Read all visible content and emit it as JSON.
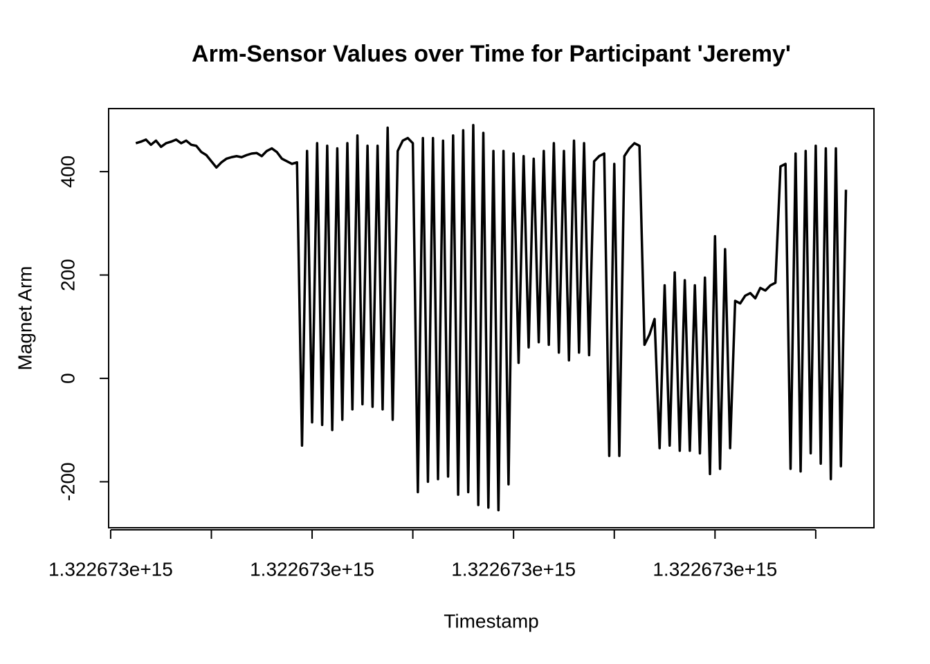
{
  "chart_data": {
    "type": "line",
    "title": "Arm-Sensor Values over Time for Participant 'Jeremy'",
    "x_label": "Timestamp",
    "y_label": "Magnet Arm",
    "color": "#000000",
    "x": [
      1322673012500000,
      1322673015000000,
      1322673017500000,
      1322673020000000,
      1322673022500000,
      1322673025000000,
      1322673027500000,
      1322673030000000,
      1322673032500000,
      1322673035000000,
      1322673037500000,
      1322673040000000,
      1322673042500000,
      1322673045000000,
      1322673047500000,
      1322673050000000,
      1322673052500000,
      1322673055000000,
      1322673057500000,
      1322673060000000,
      1322673062500000,
      1322673065000000,
      1322673067500000,
      1322673070000000,
      1322673072500000,
      1322673075000000,
      1322673077500000,
      1322673080000000,
      1322673082500000,
      1322673085000000,
      1322673087500000,
      1322673090000000,
      1322673092500000,
      1322673095000000,
      1322673097500000,
      1322673100000000,
      1322673102500000,
      1322673105000000,
      1322673107500000,
      1322673110000000,
      1322673112500000,
      1322673115000000,
      1322673117500000,
      1322673120000000,
      1322673122500000,
      1322673125000000,
      1322673127500000,
      1322673130000000,
      1322673132500000,
      1322673135000000,
      1322673137500000,
      1322673140000000,
      1322673142500000,
      1322673145000000,
      1322673147500000,
      1322673150000000,
      1322673152500000,
      1322673155000000,
      1322673157500000,
      1322673160000000,
      1322673162500000,
      1322673165000000,
      1322673167500000,
      1322673170000000,
      1322673172500000,
      1322673175000000,
      1322673177500000,
      1322673180000000,
      1322673182500000,
      1322673185000000,
      1322673187500000,
      1322673190000000,
      1322673192500000,
      1322673195000000,
      1322673197500000,
      1322673200000000,
      1322673202500000,
      1322673205000000,
      1322673207500000,
      1322673210000000,
      1322673212500000,
      1322673215000000,
      1322673217500000,
      1322673220000000,
      1322673222500000,
      1322673225000000,
      1322673227500000,
      1322673230000000,
      1322673232500000,
      1322673235000000,
      1322673237500000,
      1322673240000000,
      1322673242500000,
      1322673245000000,
      1322673247500000,
      1322673250000000,
      1322673252500000,
      1322673255000000,
      1322673257500000,
      1322673260000000,
      1322673262500000,
      1322673265000000,
      1322673267500000,
      1322673270000000,
      1322673272500000,
      1322673275000000,
      1322673277500000,
      1322673280000000,
      1322673282500000,
      1322673285000000,
      1322673287500000,
      1322673290000000,
      1322673292500000,
      1322673295000000,
      1322673297500000,
      1322673300000000,
      1322673302500000,
      1322673305000000,
      1322673307500000,
      1322673310000000,
      1322673312500000,
      1322673315000000,
      1322673317500000,
      1322673320000000,
      1322673322500000,
      1322673325000000,
      1322673327500000,
      1322673330000000,
      1322673332500000,
      1322673335000000,
      1322673337500000,
      1322673340000000,
      1322673342500000,
      1322673345000000,
      1322673347500000,
      1322673350000000,
      1322673352500000,
      1322673355000000,
      1322673357500000,
      1322673360000000,
      1322673362500000,
      1322673365000000
    ],
    "values": [
      455,
      458,
      462,
      452,
      460,
      448,
      455,
      458,
      462,
      455,
      460,
      452,
      450,
      438,
      432,
      420,
      408,
      418,
      425,
      428,
      430,
      428,
      432,
      435,
      436,
      430,
      440,
      445,
      438,
      425,
      420,
      415,
      418,
      -130,
      440,
      -85,
      455,
      -90,
      450,
      -100,
      445,
      -80,
      455,
      -60,
      470,
      -50,
      450,
      -55,
      450,
      -60,
      485,
      -80,
      440,
      460,
      465,
      455,
      -220,
      465,
      -200,
      465,
      -195,
      460,
      -190,
      470,
      -225,
      480,
      -220,
      490,
      -245,
      475,
      -250,
      440,
      -255,
      440,
      -205,
      435,
      30,
      430,
      60,
      425,
      70,
      440,
      65,
      455,
      50,
      440,
      35,
      460,
      50,
      455,
      45,
      420,
      430,
      435,
      -150,
      415,
      -150,
      430,
      445,
      455,
      450,
      65,
      85,
      115,
      -135,
      180,
      -130,
      205,
      -140,
      190,
      -140,
      180,
      -145,
      195,
      -185,
      275,
      -175,
      250,
      -135,
      150,
      145,
      160,
      165,
      155,
      175,
      170,
      180,
      185,
      410,
      415,
      -175,
      435,
      -180,
      440,
      -145,
      450,
      -165,
      445,
      -195,
      445,
      -170,
      365
    ],
    "xlim": [
      1322672999000000,
      1322673378900000
    ],
    "xticks": [
      {
        "value": 1322673000000000,
        "label": "1.322673e+15"
      },
      {
        "value": 1322673050000000,
        "label": null
      },
      {
        "value": 1322673100000000,
        "label": "1.322673e+15"
      },
      {
        "value": 1322673150000000,
        "label": null
      },
      {
        "value": 1322673200000000,
        "label": "1.322673e+15"
      },
      {
        "value": 1322673250000000,
        "label": null
      },
      {
        "value": 1322673300000000,
        "label": "1.322673e+15"
      },
      {
        "value": 1322673350000000,
        "label": null
      }
    ],
    "ylim": [
      -289,
      522
    ],
    "yticks": [
      -200,
      0,
      200,
      400
    ],
    "grid": false
  }
}
